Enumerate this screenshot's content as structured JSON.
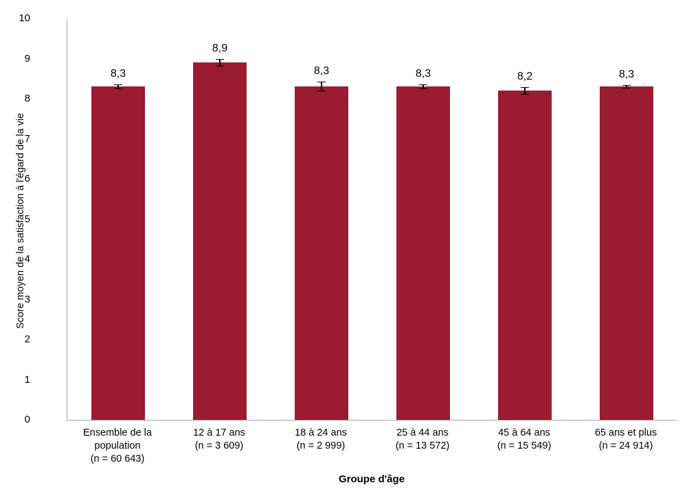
{
  "chart_data": {
    "type": "bar",
    "title": "",
    "xlabel": "Groupe d'âge",
    "ylabel": "Score moyen de la satisfaction à l'égard de la vie",
    "ylim": [
      0,
      10
    ],
    "yticks": [
      0,
      1,
      2,
      3,
      4,
      5,
      6,
      7,
      8,
      9,
      10
    ],
    "grid": false,
    "legend": "none",
    "bar_color": "#9B1B31",
    "error_bar_color": "#000000",
    "axis_line_color": "#A6A6A6",
    "categories": [
      {
        "lines": [
          "Ensemble de la",
          "population",
          "(n = 60 643)"
        ]
      },
      {
        "lines": [
          "12 à 17 ans",
          "(n = 3 609)"
        ]
      },
      {
        "lines": [
          "18 à 24 ans",
          "(n = 2 999)"
        ]
      },
      {
        "lines": [
          "25 à 44 ans",
          "(n = 13 572)"
        ]
      },
      {
        "lines": [
          "45 à 64 ans",
          "(n = 15 549)"
        ]
      },
      {
        "lines": [
          "65 ans et plus",
          "(n = 24 914)"
        ]
      }
    ],
    "values": [
      8.3,
      8.9,
      8.3,
      8.3,
      8.2,
      8.3
    ],
    "value_labels": [
      "8,3",
      "8,9",
      "8,3",
      "8,3",
      "8,2",
      "8,3"
    ],
    "error": [
      0.06,
      0.1,
      0.12,
      0.06,
      0.09,
      0.05
    ]
  }
}
